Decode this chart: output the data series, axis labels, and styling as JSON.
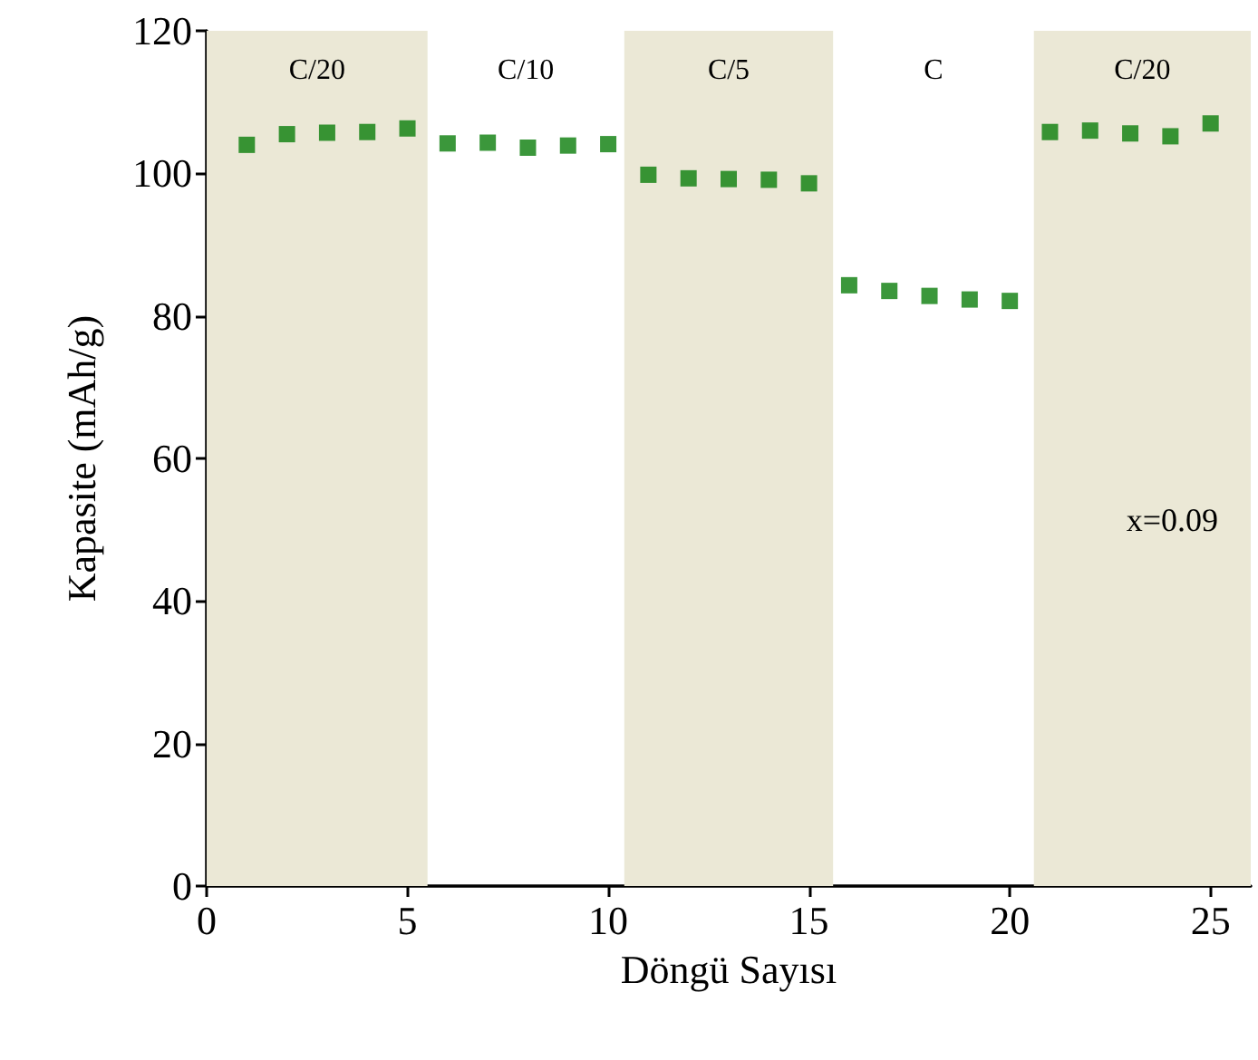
{
  "chart_data": {
    "type": "scatter",
    "xlabel": "Döngü Sayısı",
    "ylabel": "Kapasite (mAh/g)",
    "x": [
      1,
      2,
      3,
      4,
      5,
      6,
      7,
      8,
      9,
      10,
      11,
      12,
      13,
      14,
      15,
      16,
      17,
      18,
      19,
      20,
      21,
      22,
      23,
      24,
      25
    ],
    "series": [
      {
        "color": "#0a7d0a",
        "values": [
          104,
          105.5,
          105.7,
          105.8,
          106.3,
          104.2,
          104.3,
          103.6,
          103.9,
          104.1,
          99.8,
          99.3,
          99.2,
          99.1,
          98.6,
          84.3,
          83.5,
          82.8,
          82.3,
          82.1,
          105.8,
          106,
          105.6,
          105.2,
          107
        ]
      }
    ],
    "xlim": [
      0,
      26
    ],
    "xticks": [
      0,
      5,
      10,
      15,
      20,
      25
    ],
    "ylim": [
      0,
      120
    ],
    "yticks": [
      0,
      20,
      40,
      60,
      80,
      100,
      120
    ],
    "marker": "square",
    "grid": false,
    "bands": [
      {
        "axis": "x",
        "from": 0,
        "to": 5.5,
        "color": "#ebe8d6"
      },
      {
        "axis": "x",
        "from": 10.4,
        "to": 15.6,
        "color": "#ebe8d6"
      },
      {
        "axis": "x",
        "from": 20.6,
        "to": 26,
        "color": "#ebe8d6"
      }
    ],
    "annotations": [
      "C/20",
      "C/10",
      "C/5",
      "C",
      "C/20",
      "x=0.09"
    ]
  }
}
